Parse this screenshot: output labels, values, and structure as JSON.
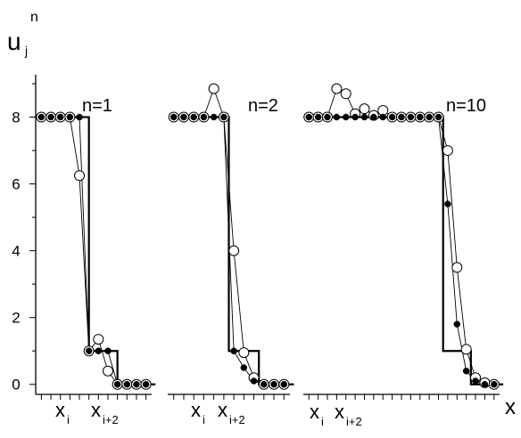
{
  "chart_data": [
    {
      "type": "line",
      "panel_label": "n=1",
      "y_axis": {
        "label_main": "u",
        "label_sub": "j",
        "label_sup": "n",
        "ticks": [
          "0",
          "2",
          "4",
          "6",
          "8"
        ],
        "ylim": [
          -0.3,
          9.8
        ]
      },
      "x_labels": [
        {
          "main": "x",
          "sub": "i"
        },
        {
          "main": "x",
          "sub": "i+2"
        }
      ],
      "series": [
        {
          "style": "step",
          "x": [
            0,
            5,
            5,
            8,
            8,
            12
          ],
          "y": [
            8,
            8,
            1,
            1,
            0,
            0
          ]
        },
        {
          "marker": "open-circle",
          "x": [
            0,
            1,
            2,
            3,
            4,
            5,
            6,
            7,
            8,
            9,
            10,
            11
          ],
          "y": [
            8,
            8,
            8,
            8,
            6.25,
            1.0,
            1.35,
            0.4,
            0.0,
            0.0,
            0.0,
            0.0
          ]
        },
        {
          "marker": "filled-circle",
          "x": [
            0,
            1,
            2,
            3,
            4,
            5,
            6,
            7,
            8,
            9,
            10,
            11
          ],
          "y": [
            8,
            8,
            8,
            8,
            8,
            1,
            1,
            1,
            0,
            0,
            0,
            0
          ]
        }
      ]
    },
    {
      "type": "line",
      "panel_label": "n=2",
      "x_labels": [
        {
          "main": "x",
          "sub": "i"
        },
        {
          "main": "x",
          "sub": "i+2"
        }
      ],
      "series": [
        {
          "style": "step",
          "x": [
            0,
            5.5,
            5.5,
            8.5,
            8.5,
            12
          ],
          "y": [
            8,
            8,
            1,
            1,
            0,
            0
          ]
        },
        {
          "marker": "open-circle",
          "x": [
            0,
            1,
            2,
            3,
            4,
            5,
            6,
            7,
            8,
            9,
            10,
            11
          ],
          "y": [
            8,
            8,
            8,
            8,
            8.85,
            8.0,
            4.0,
            0.95,
            0.2,
            0.0,
            0.0,
            0.0
          ]
        },
        {
          "marker": "filled-circle",
          "x": [
            0,
            1,
            2,
            3,
            4,
            5,
            6,
            7,
            8,
            9,
            10,
            11
          ],
          "y": [
            8,
            8,
            8,
            8,
            8,
            8,
            1,
            0.5,
            0.1,
            0,
            0,
            0
          ]
        }
      ]
    },
    {
      "type": "line",
      "panel_label": "n=10",
      "x_labels": [
        {
          "main": "x",
          "sub": "i"
        },
        {
          "main": "x",
          "sub": "i+2"
        }
      ],
      "x_axis_end_label": "x",
      "series": [
        {
          "style": "step",
          "x": [
            0,
            14.5,
            14.5,
            17.5,
            17.5,
            21
          ],
          "y": [
            8,
            8,
            1,
            1,
            0,
            0
          ]
        },
        {
          "marker": "open-circle",
          "x": [
            0,
            1,
            2,
            3,
            4,
            5,
            6,
            7,
            8,
            9,
            10,
            11,
            12,
            13,
            14,
            15,
            16,
            17,
            18,
            19,
            20
          ],
          "y": [
            8,
            8,
            8,
            8.85,
            8.7,
            8.1,
            8.25,
            8.05,
            8.2,
            8.0,
            8.0,
            8.0,
            8.0,
            8.0,
            8.0,
            7.0,
            3.5,
            1.05,
            0.2,
            0.05,
            0.0
          ]
        },
        {
          "marker": "filled-circle",
          "x": [
            0,
            1,
            2,
            3,
            4,
            5,
            6,
            7,
            8,
            9,
            10,
            11,
            12,
            13,
            14,
            15,
            16,
            17,
            18,
            19,
            20
          ],
          "y": [
            8,
            8,
            8,
            8,
            8,
            8,
            8,
            8,
            8,
            8,
            8,
            8,
            8,
            8,
            8,
            5.4,
            1.8,
            0.4,
            0.1,
            0.0,
            0.0
          ]
        }
      ]
    }
  ]
}
